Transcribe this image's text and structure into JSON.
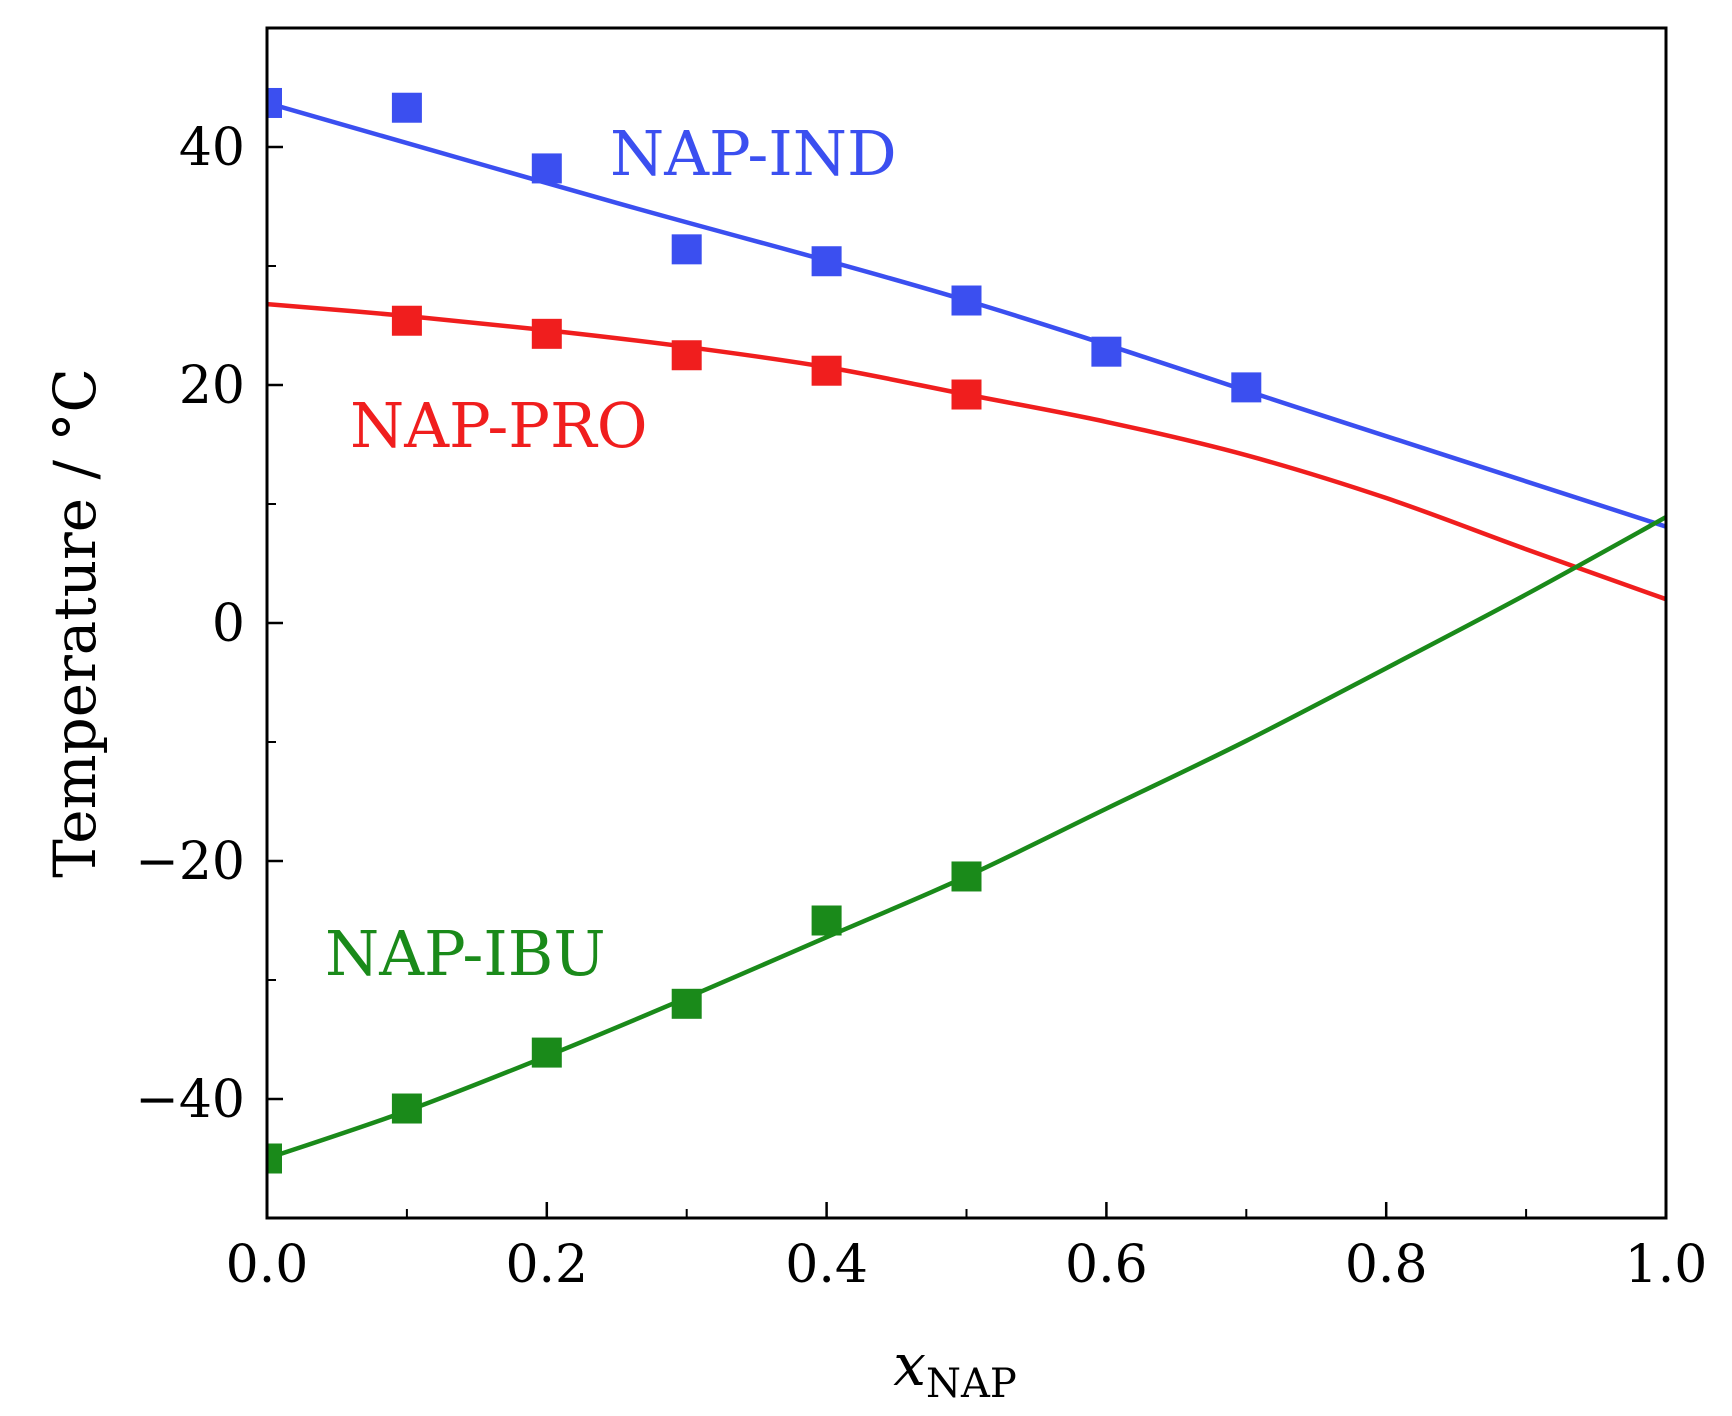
{
  "chart_data": {
    "type": "line",
    "title": "",
    "xlabel": "x",
    "xlabel_sub": "NAP",
    "ylabel": "Temperature / °C",
    "xlim": [
      0.0,
      1.0
    ],
    "ylim": [
      -50,
      50
    ],
    "xticks": [
      0.0,
      0.2,
      0.4,
      0.6,
      0.8,
      1.0
    ],
    "xtick_labels": [
      "0.0",
      "0.2",
      "0.4",
      "0.6",
      "0.8",
      "1.0"
    ],
    "xminor": [
      0.1,
      0.3,
      0.5,
      0.7,
      0.9
    ],
    "yticks": [
      40,
      20,
      0,
      -20,
      -40
    ],
    "ytick_labels": [
      "40",
      "20",
      "0",
      "−20",
      "−40"
    ],
    "yminor": [
      30,
      10,
      -10,
      -30
    ],
    "grid": false,
    "series": [
      {
        "name": "NAP-IND",
        "color": "#3b4ff0",
        "points": [
          [
            0.0,
            43.7
          ],
          [
            0.1,
            43.3
          ],
          [
            0.2,
            38.2
          ],
          [
            0.3,
            31.4
          ],
          [
            0.4,
            30.4
          ],
          [
            0.5,
            27.1
          ],
          [
            0.6,
            22.8
          ],
          [
            0.7,
            19.8
          ]
        ],
        "fit": [
          [
            0.0,
            43.7
          ],
          [
            0.25,
            35.3
          ],
          [
            0.5,
            27.1
          ],
          [
            0.75,
            17.6
          ],
          [
            1.0,
            8.1
          ]
        ]
      },
      {
        "name": "NAP-PRO",
        "color": "#f01e1e",
        "points": [
          [
            0.1,
            25.4
          ],
          [
            0.2,
            24.3
          ],
          [
            0.3,
            22.5
          ],
          [
            0.4,
            21.2
          ],
          [
            0.5,
            19.2
          ]
        ],
        "fit": [
          [
            0.0,
            26.8
          ],
          [
            0.1,
            25.8
          ],
          [
            0.2,
            24.6
          ],
          [
            0.3,
            23.2
          ],
          [
            0.4,
            21.5
          ],
          [
            0.5,
            19.2
          ],
          [
            0.6,
            16.9
          ],
          [
            0.7,
            14.1
          ],
          [
            0.8,
            10.5
          ],
          [
            0.9,
            6.2
          ],
          [
            1.0,
            2.0
          ]
        ]
      },
      {
        "name": "NAP-IBU",
        "color": "#1a8a1a",
        "points": [
          [
            0.0,
            -45.0
          ],
          [
            0.1,
            -40.8
          ],
          [
            0.2,
            -36.1
          ],
          [
            0.3,
            -32.0
          ],
          [
            0.4,
            -25.0
          ],
          [
            0.5,
            -21.3
          ]
        ],
        "fit": [
          [
            0.0,
            -45.0
          ],
          [
            0.1,
            -41.0
          ],
          [
            0.2,
            -36.4
          ],
          [
            0.3,
            -31.5
          ],
          [
            0.4,
            -26.4
          ],
          [
            0.5,
            -21.3
          ],
          [
            0.6,
            -15.6
          ],
          [
            0.7,
            -9.9
          ],
          [
            0.8,
            -3.8
          ],
          [
            0.9,
            2.4
          ],
          [
            1.0,
            8.9
          ]
        ]
      }
    ]
  }
}
